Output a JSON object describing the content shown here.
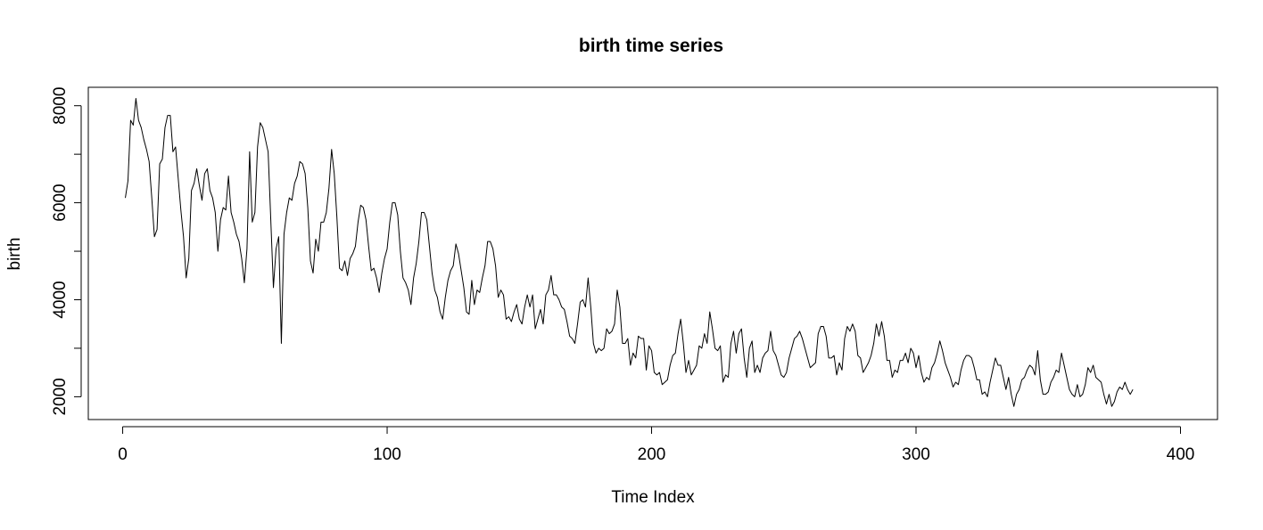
{
  "chart_data": {
    "type": "line",
    "title": "birth time series",
    "xlabel": "Time Index",
    "ylabel": "birth",
    "xlim": [
      -13,
      414
    ],
    "ylim": [
      1530,
      8380
    ],
    "xticks": [
      0,
      100,
      200,
      300,
      400
    ],
    "xtick_labels": [
      "0",
      "100",
      "200",
      "300",
      "400"
    ],
    "yticks": [
      2000,
      3000,
      4000,
      5000,
      6000,
      7000,
      8000
    ],
    "ytick_labels": [
      "2000",
      "",
      "4000",
      "",
      "6000",
      "",
      "8000"
    ],
    "grid": false,
    "legend": "none",
    "line_color": "#000000",
    "series": [
      {
        "x_start": 1,
        "values": [
          6100,
          6450,
          7700,
          7600,
          8150,
          7700,
          7550,
          7300,
          7100,
          6850,
          6100,
          5300,
          5450,
          6800,
          6900,
          7550,
          7800,
          7800,
          7050,
          7150,
          6500,
          5850,
          5300,
          4450,
          4850,
          6250,
          6400,
          6700,
          6350,
          6050,
          6600,
          6700,
          6250,
          6100,
          5800,
          5000,
          5650,
          5900,
          5850,
          6550,
          5800,
          5600,
          5350,
          5200,
          4850,
          4350,
          5050,
          7050,
          5600,
          5800,
          7150,
          7650,
          7550,
          7300,
          7050,
          5650,
          4250,
          5050,
          5300,
          3100,
          5350,
          5800,
          6100,
          6050,
          6400,
          6550,
          6850,
          6800,
          6600,
          5900,
          4800,
          4550,
          5250,
          5000,
          5600,
          5600,
          5800,
          6300,
          7100,
          6600,
          5700,
          4650,
          4600,
          4800,
          4500,
          4850,
          4950,
          5100,
          5600,
          5950,
          5900,
          5650,
          5100,
          4600,
          4650,
          4450,
          4150,
          4550,
          4850,
          5050,
          5600,
          6000,
          6000,
          5750,
          5000,
          4450,
          4350,
          4200,
          3900,
          4450,
          4750,
          5200,
          5800,
          5800,
          5650,
          5100,
          4550,
          4200,
          4050,
          3750,
          3600,
          4050,
          4400,
          4600,
          4700,
          5150,
          4950,
          4600,
          4250,
          3750,
          3700,
          4400,
          3900,
          4200,
          4150,
          4450,
          4700,
          5200,
          5200,
          5050,
          4700,
          4050,
          4200,
          4100,
          3600,
          3650,
          3550,
          3750,
          3900,
          3600,
          3500,
          3850,
          4100,
          3850,
          4100,
          3400,
          3600,
          3800,
          3500,
          4100,
          4200,
          4500,
          4100,
          4100,
          4000,
          3850,
          3800,
          3550,
          3250,
          3200,
          3100,
          3500,
          3950,
          4000,
          3850,
          4450,
          3850,
          3100,
          2900,
          3000,
          2950,
          3000,
          3400,
          3300,
          3350,
          3500,
          4200,
          3850,
          3100,
          3100,
          3200,
          2650,
          2900,
          2800,
          3250,
          3200,
          3200,
          2550,
          3050,
          2950,
          2500,
          2450,
          2500,
          2250,
          2300,
          2350,
          2650,
          2850,
          2900,
          3300,
          3600,
          3100,
          2500,
          2750,
          2450,
          2550,
          2650,
          3050,
          3000,
          3300,
          3100,
          3750,
          3400,
          3000,
          2950,
          3050,
          2300,
          2450,
          2400,
          3100,
          3350,
          2900,
          3300,
          3400,
          2800,
          2400,
          3000,
          3150,
          2500,
          2650,
          2500,
          2800,
          2900,
          2950,
          3350,
          2950,
          2850,
          2650,
          2450,
          2400,
          2500,
          2800,
          3000,
          3200,
          3250,
          3350,
          3200,
          3000,
          2800,
          2600,
          2650,
          2700,
          3300,
          3450,
          3450,
          3250,
          2800,
          2800,
          2850,
          2450,
          2700,
          2550,
          3200,
          3450,
          3350,
          3500,
          3350,
          2850,
          2800,
          2500,
          2600,
          2700,
          2850,
          3100,
          3500,
          3250,
          3550,
          3250,
          2750,
          2750,
          2400,
          2550,
          2500,
          2750,
          2750,
          2900,
          2700,
          3000,
          2900,
          2600,
          2850,
          2500,
          2300,
          2400,
          2350,
          2600,
          2700,
          2900,
          3150,
          2950,
          2700,
          2550,
          2400,
          2200,
          2300,
          2250,
          2550,
          2750,
          2850,
          2850,
          2800,
          2600,
          2350,
          2350,
          2050,
          2100,
          2000,
          2300,
          2550,
          2800,
          2650,
          2650,
          2400,
          2150,
          2400,
          2050,
          1800,
          2050,
          2150,
          2350,
          2400,
          2550,
          2650,
          2600,
          2450,
          2950,
          2350,
          2050,
          2050,
          2100,
          2300,
          2400,
          2550,
          2500,
          2900,
          2650,
          2400,
          2150,
          2050,
          2000,
          2250,
          2000,
          2050,
          2250,
          2600,
          2500,
          2650,
          2400,
          2350,
          2300,
          2050,
          1850,
          2050,
          1800,
          1900,
          2100,
          2200,
          2150,
          2300,
          2150,
          2050,
          2150
        ]
      }
    ]
  }
}
